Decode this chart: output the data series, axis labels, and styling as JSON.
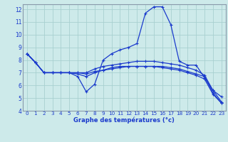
{
  "xlabel": "Graphe des températures (°c)",
  "background_color": "#cdeaea",
  "grid_color": "#a8d0d0",
  "line_color": "#1a3acc",
  "spine_color": "#8899aa",
  "xlim": [
    -0.5,
    23.5
  ],
  "ylim": [
    4,
    12.4
  ],
  "xticks": [
    0,
    1,
    2,
    3,
    4,
    5,
    6,
    7,
    8,
    9,
    10,
    11,
    12,
    13,
    14,
    15,
    16,
    17,
    18,
    19,
    20,
    21,
    22,
    23
  ],
  "yticks": [
    4,
    5,
    6,
    7,
    8,
    9,
    10,
    11,
    12
  ],
  "lines": [
    {
      "x": [
        0,
        1,
        2,
        3,
        4,
        5,
        6,
        7,
        8,
        9,
        10,
        11,
        12,
        13,
        14,
        15,
        16,
        17,
        18,
        19,
        20,
        21,
        22,
        23
      ],
      "y": [
        8.5,
        7.8,
        7.0,
        7.0,
        7.0,
        7.0,
        6.7,
        5.5,
        6.1,
        8.0,
        8.5,
        8.8,
        9.0,
        9.3,
        11.7,
        12.2,
        12.2,
        10.8,
        7.9,
        7.6,
        7.6,
        6.6,
        5.6,
        5.1
      ]
    },
    {
      "x": [
        0,
        1,
        2,
        3,
        4,
        5,
        6,
        7,
        8,
        9,
        10,
        11,
        12,
        13,
        14,
        15,
        16,
        17,
        18,
        19,
        20,
        21,
        22,
        23
      ],
      "y": [
        8.5,
        7.8,
        7.0,
        7.0,
        7.0,
        7.0,
        7.0,
        7.0,
        7.3,
        7.5,
        7.6,
        7.7,
        7.8,
        7.9,
        7.9,
        7.9,
        7.8,
        7.7,
        7.6,
        7.4,
        7.2,
        6.8,
        5.6,
        4.7
      ]
    },
    {
      "x": [
        0,
        1,
        2,
        3,
        4,
        5,
        6,
        7,
        8,
        9,
        10,
        11,
        12,
        13,
        14,
        15,
        16,
        17,
        18,
        19,
        20,
        21,
        22,
        23
      ],
      "y": [
        8.5,
        7.8,
        7.0,
        7.0,
        7.0,
        7.0,
        7.0,
        6.9,
        7.1,
        7.2,
        7.3,
        7.4,
        7.5,
        7.5,
        7.5,
        7.5,
        7.4,
        7.3,
        7.2,
        7.0,
        6.8,
        6.5,
        5.3,
        4.6
      ]
    },
    {
      "x": [
        0,
        1,
        2,
        3,
        4,
        5,
        6,
        7,
        8,
        9,
        10,
        11,
        12,
        13,
        14,
        15,
        16,
        17,
        18,
        19,
        20,
        21,
        22,
        23
      ],
      "y": [
        8.5,
        7.8,
        7.0,
        7.0,
        7.0,
        7.0,
        6.9,
        6.7,
        7.0,
        7.2,
        7.4,
        7.5,
        7.5,
        7.5,
        7.5,
        7.5,
        7.5,
        7.4,
        7.3,
        7.1,
        6.9,
        6.7,
        5.4,
        4.6
      ]
    }
  ]
}
